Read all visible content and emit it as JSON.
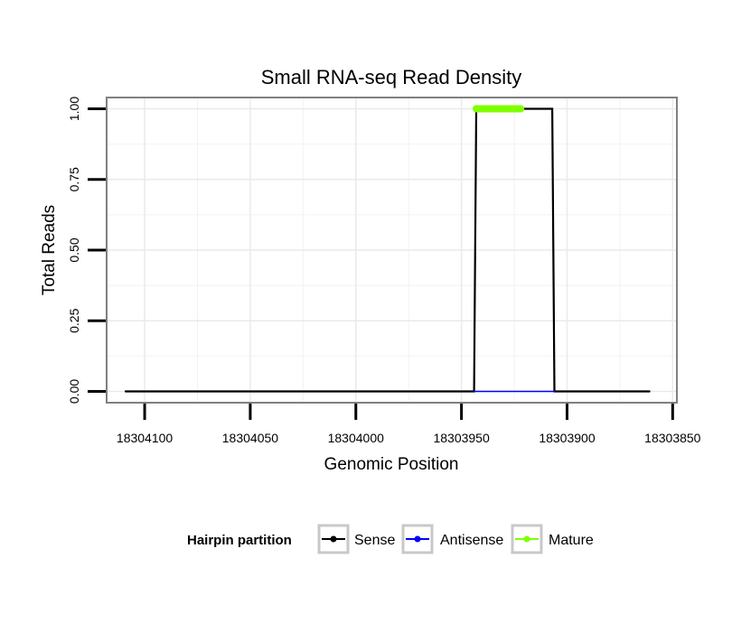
{
  "chart_data": {
    "type": "line",
    "title": "Small RNA-seq Read Density",
    "xlabel": "Genomic Position",
    "ylabel": "Total Reads",
    "x_reversed": true,
    "xlim": [
      18304118,
      18303848
    ],
    "ylim": [
      -0.04,
      1.04
    ],
    "x_ticks": [
      18304100,
      18304050,
      18304000,
      18303950,
      18303900,
      18303850
    ],
    "x_tick_labels": [
      "18304100",
      "18304050",
      "18304000",
      "18303950",
      "18303900",
      "18303850"
    ],
    "y_ticks": [
      0,
      0.25,
      0.5,
      0.75,
      1.0
    ],
    "y_tick_labels": [
      "0.00",
      "0.25",
      "0.50",
      "0.75",
      "1.00"
    ],
    "grid": true,
    "legend_position": "bottom",
    "legend_title": "Hairpin partition",
    "series": [
      {
        "name": "Sense",
        "color": "#000000",
        "x": [
          18304109,
          18303944,
          18303943,
          18303907,
          18303906,
          18303861
        ],
        "y": [
          0,
          0,
          1,
          1,
          0,
          0
        ]
      },
      {
        "name": "Antisense",
        "color": "#0000ff",
        "x": [
          18303944,
          18303906
        ],
        "y": [
          0,
          0
        ]
      },
      {
        "name": "Mature",
        "color": "#7fff00",
        "x": [
          18303943,
          18303922
        ],
        "y": [
          1,
          1
        ]
      }
    ]
  }
}
